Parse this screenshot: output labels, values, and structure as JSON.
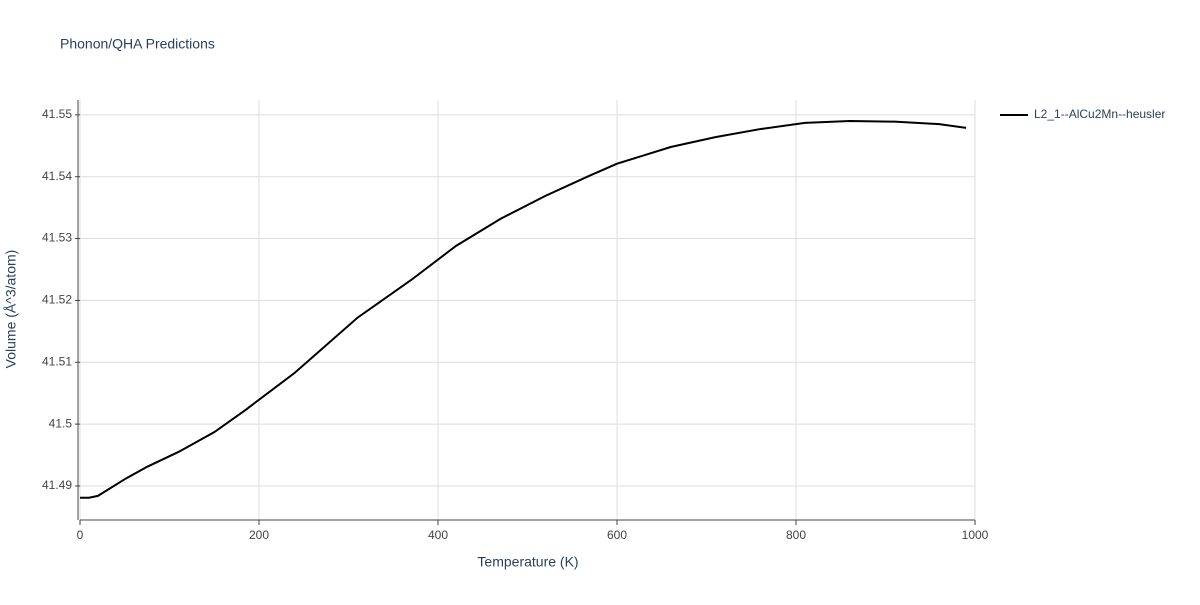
{
  "chart_data": {
    "type": "line",
    "title": "Phonon/QHA Predictions",
    "x_label": "Temperature (K)",
    "y_label": "Volume (Å^3/atom)",
    "x": [
      0,
      10,
      20,
      50,
      75,
      110,
      150,
      185,
      240,
      310,
      370,
      420,
      470,
      520,
      570,
      600,
      660,
      710,
      760,
      810,
      860,
      910,
      960,
      990
    ],
    "series": [
      {
        "name": "L2_1--AlCu2Mn--heusler",
        "color": "#000000",
        "values": [
          41.4881,
          41.4881,
          41.4884,
          41.4911,
          41.4931,
          41.4955,
          41.4987,
          41.5023,
          41.5083,
          41.5172,
          41.5233,
          41.5288,
          41.5332,
          41.5369,
          41.5402,
          41.5421,
          41.5448,
          41.5464,
          41.5477,
          41.5487,
          41.549,
          41.5489,
          41.5485,
          41.5479
        ]
      }
    ],
    "xlim": [
      0,
      1000
    ],
    "xticks": [
      0,
      200,
      400,
      600,
      800,
      1000
    ],
    "ylim": [
      41.4845,
      41.5524
    ],
    "yticks": [
      41.49,
      41.5,
      41.51,
      41.52,
      41.53,
      41.54,
      41.55
    ],
    "grid": true,
    "legend": "top-right"
  }
}
